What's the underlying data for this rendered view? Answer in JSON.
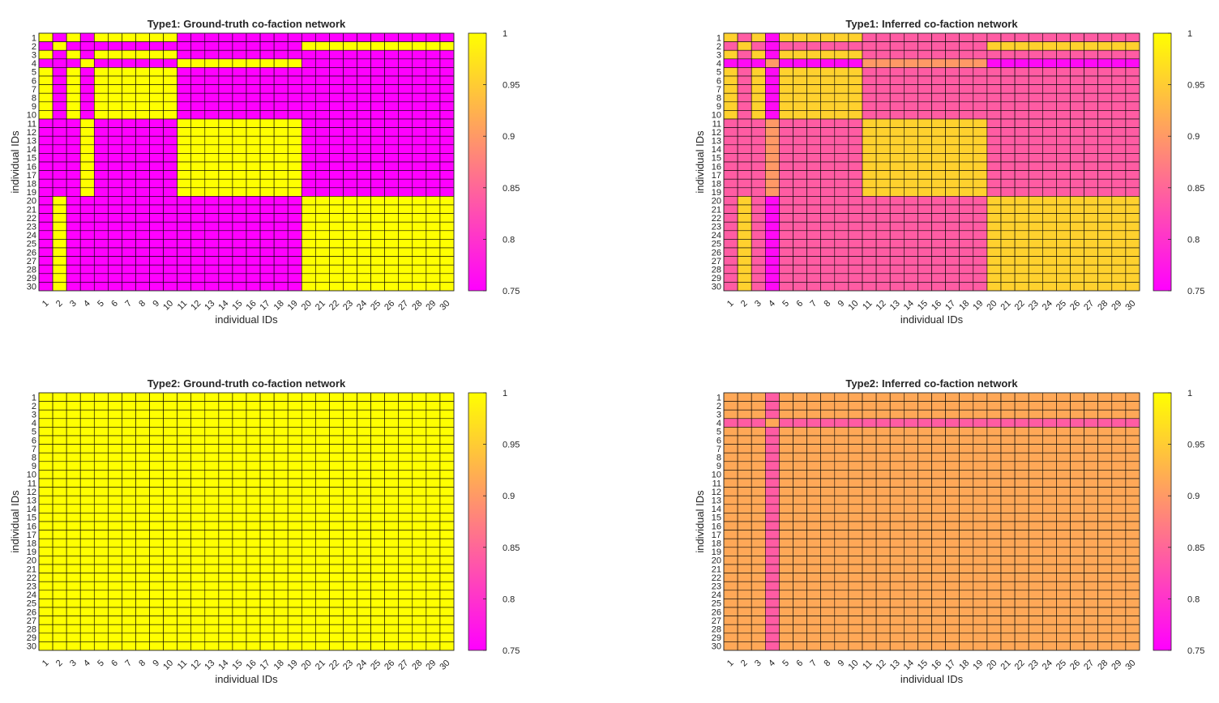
{
  "colormap": {
    "low": "#ff00ff",
    "high": "#ffff00",
    "grid": "#000000"
  },
  "chart_data": [
    {
      "type": "heatmap",
      "title": "Type1: Ground-truth co-faction network",
      "xlabel": "individual IDs",
      "ylabel": "individual IDs",
      "xticks": [
        "1",
        "2",
        "3",
        "4",
        "5",
        "6",
        "7",
        "8",
        "9",
        "10",
        "11",
        "12",
        "13",
        "14",
        "15",
        "16",
        "17",
        "18",
        "19",
        "20",
        "21",
        "22",
        "23",
        "24",
        "25",
        "26",
        "27",
        "28",
        "29",
        "30"
      ],
      "yticks": [
        "1",
        "2",
        "3",
        "4",
        "5",
        "6",
        "7",
        "8",
        "9",
        "10",
        "11",
        "12",
        "13",
        "14",
        "15",
        "16",
        "17",
        "18",
        "19",
        "20",
        "21",
        "22",
        "23",
        "24",
        "25",
        "26",
        "27",
        "28",
        "29",
        "30"
      ],
      "colorbar": {
        "ticks": [
          "1",
          "0.95",
          "0.9",
          "0.85",
          "0.8",
          "0.75"
        ],
        "range": [
          0.75,
          1
        ]
      },
      "model": {
        "factions": [
          [
            1,
            3,
            5,
            6,
            7,
            8,
            9,
            10
          ],
          [
            2,
            20,
            21,
            22,
            23,
            24,
            25,
            26,
            27,
            28,
            29,
            30
          ],
          [
            4,
            11,
            12,
            13,
            14,
            15,
            16,
            17,
            18,
            19
          ]
        ],
        "same": 1.0,
        "diff": 0.75
      }
    },
    {
      "type": "heatmap",
      "title": "Type1: Inferred co-faction network",
      "xlabel": "individual IDs",
      "ylabel": "individual IDs",
      "xticks": [
        "1",
        "2",
        "3",
        "4",
        "5",
        "6",
        "7",
        "8",
        "9",
        "10",
        "11",
        "12",
        "13",
        "14",
        "15",
        "16",
        "17",
        "18",
        "19",
        "20",
        "21",
        "22",
        "23",
        "24",
        "25",
        "26",
        "27",
        "28",
        "29",
        "30"
      ],
      "yticks": [
        "1",
        "2",
        "3",
        "4",
        "5",
        "6",
        "7",
        "8",
        "9",
        "10",
        "11",
        "12",
        "13",
        "14",
        "15",
        "16",
        "17",
        "18",
        "19",
        "20",
        "21",
        "22",
        "23",
        "24",
        "25",
        "26",
        "27",
        "28",
        "29",
        "30"
      ],
      "colorbar": {
        "ticks": [
          "1",
          "0.95",
          "0.9",
          "0.85",
          "0.8",
          "0.75"
        ],
        "range": [
          0.75,
          1
        ]
      },
      "model": {
        "factions": [
          [
            1,
            3,
            5,
            6,
            7,
            8,
            9,
            10
          ],
          [
            2,
            20,
            21,
            22,
            23,
            24,
            25,
            26,
            27,
            28,
            29,
            30
          ],
          [
            4,
            11,
            12,
            13,
            14,
            15,
            16,
            17,
            18,
            19
          ]
        ],
        "same": 0.955,
        "diff": 0.84,
        "special": [
          4
        ],
        "special_diff": 0.76,
        "special_same": 0.9
      }
    },
    {
      "type": "heatmap",
      "title": "Type2: Ground-truth co-faction network",
      "xlabel": "individual IDs",
      "ylabel": "individual IDs",
      "xticks": [
        "1",
        "2",
        "3",
        "4",
        "5",
        "6",
        "7",
        "8",
        "9",
        "10",
        "11",
        "12",
        "13",
        "14",
        "15",
        "16",
        "17",
        "18",
        "19",
        "20",
        "21",
        "22",
        "23",
        "24",
        "25",
        "26",
        "27",
        "28",
        "29",
        "30"
      ],
      "yticks": [
        "1",
        "2",
        "3",
        "4",
        "5",
        "6",
        "7",
        "8",
        "9",
        "10",
        "11",
        "12",
        "13",
        "14",
        "15",
        "16",
        "17",
        "18",
        "19",
        "20",
        "21",
        "22",
        "23",
        "24",
        "25",
        "26",
        "27",
        "28",
        "29",
        "30"
      ],
      "colorbar": {
        "ticks": [
          "1",
          "0.95",
          "0.9",
          "0.85",
          "0.8",
          "0.75"
        ],
        "range": [
          0.75,
          1
        ]
      },
      "model": {
        "uniform": 1.0
      }
    },
    {
      "type": "heatmap",
      "title": "Type2: Inferred co-faction network",
      "xlabel": "individual IDs",
      "ylabel": "individual IDs",
      "xticks": [
        "1",
        "2",
        "3",
        "4",
        "5",
        "6",
        "7",
        "8",
        "9",
        "10",
        "11",
        "12",
        "13",
        "14",
        "15",
        "16",
        "17",
        "18",
        "19",
        "20",
        "21",
        "22",
        "23",
        "24",
        "25",
        "26",
        "27",
        "28",
        "29",
        "30"
      ],
      "yticks": [
        "1",
        "2",
        "3",
        "4",
        "5",
        "6",
        "7",
        "8",
        "9",
        "10",
        "11",
        "12",
        "13",
        "14",
        "15",
        "16",
        "17",
        "18",
        "19",
        "20",
        "21",
        "22",
        "23",
        "24",
        "25",
        "26",
        "27",
        "28",
        "29",
        "30"
      ],
      "colorbar": {
        "ticks": [
          "1",
          "0.95",
          "0.9",
          "0.85",
          "0.8",
          "0.75"
        ],
        "range": [
          0.75,
          1
        ]
      },
      "model": {
        "uniform": 0.915,
        "special": [
          4
        ],
        "special_val": 0.84,
        "special_self": 0.915
      }
    }
  ]
}
